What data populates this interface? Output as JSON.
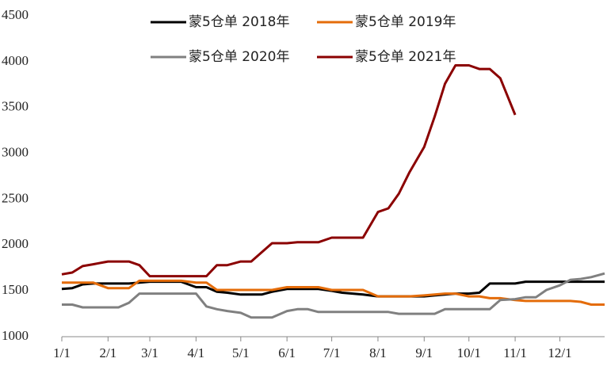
{
  "chart_data": {
    "type": "line",
    "x": [
      "1/1",
      "1/8",
      "1/15",
      "1/22",
      "2/1",
      "2/8",
      "2/15",
      "2/22",
      "3/1",
      "3/8",
      "3/15",
      "3/22",
      "4/1",
      "4/8",
      "4/15",
      "4/22",
      "5/1",
      "5/8",
      "5/15",
      "5/22",
      "6/1",
      "6/8",
      "6/15",
      "6/22",
      "7/1",
      "7/8",
      "7/15",
      "7/22",
      "8/1",
      "8/8",
      "8/15",
      "8/22",
      "9/1",
      "9/8",
      "9/15",
      "9/22",
      "10/1",
      "10/8",
      "10/15",
      "10/22",
      "11/1",
      "11/8",
      "11/15",
      "11/22",
      "12/1",
      "12/8",
      "12/15",
      "12/22",
      "12/31"
    ],
    "series": [
      {
        "name": "蒙5仓单 2018年",
        "color": "#000000",
        "values": [
          1520,
          1530,
          1570,
          1580,
          1580,
          1580,
          1580,
          1590,
          1600,
          1600,
          1600,
          1600,
          1540,
          1540,
          1490,
          1480,
          1460,
          1460,
          1460,
          1490,
          1520,
          1520,
          1520,
          1520,
          1500,
          1480,
          1470,
          1460,
          1440,
          1440,
          1440,
          1440,
          1440,
          1450,
          1460,
          1470,
          1470,
          1480,
          1580,
          1580,
          1580,
          1600,
          1600,
          1600,
          1600,
          1600,
          1600,
          1600,
          1600
        ]
      },
      {
        "name": "蒙5仓单 2019年",
        "color": "#e46c0a",
        "values": [
          1590,
          1590,
          1590,
          1590,
          1530,
          1530,
          1530,
          1610,
          1610,
          1610,
          1610,
          1610,
          1590,
          1590,
          1510,
          1510,
          1510,
          1510,
          1510,
          1510,
          1540,
          1540,
          1540,
          1540,
          1510,
          1510,
          1510,
          1510,
          1440,
          1440,
          1440,
          1440,
          1450,
          1460,
          1470,
          1470,
          1440,
          1440,
          1420,
          1420,
          1400,
          1390,
          1390,
          1390,
          1390,
          1390,
          1380,
          1350,
          1350
        ]
      },
      {
        "name": "蒙5仓单 2020年",
        "color": "#808080",
        "values": [
          1350,
          1350,
          1320,
          1320,
          1320,
          1320,
          1370,
          1470,
          1470,
          1470,
          1470,
          1470,
          1470,
          1330,
          1300,
          1280,
          1260,
          1210,
          1210,
          1210,
          1280,
          1300,
          1300,
          1270,
          1270,
          1270,
          1270,
          1270,
          1270,
          1270,
          1250,
          1250,
          1250,
          1250,
          1300,
          1300,
          1300,
          1300,
          1300,
          1400,
          1410,
          1430,
          1430,
          1510,
          1560,
          1620,
          1630,
          1650,
          1690
        ]
      },
      {
        "name": "蒙5仓单 2021年",
        "color": "#8b0000",
        "values": [
          1680,
          1700,
          1770,
          1790,
          1820,
          1820,
          1820,
          1780,
          1660,
          1660,
          1660,
          1660,
          1660,
          1660,
          1780,
          1780,
          1820,
          1820,
          1920,
          2020,
          2020,
          2030,
          2030,
          2030,
          2080,
          2080,
          2080,
          2080,
          2360,
          2400,
          2560,
          2790,
          3070,
          3400,
          3760,
          3960,
          3960,
          3920,
          3920,
          3820,
          3420,
          null,
          null,
          null,
          null,
          null,
          null,
          null,
          null
        ]
      }
    ],
    "xlim": [
      "1/1",
      "12/31"
    ],
    "xticks": [
      "1/1",
      "2/1",
      "3/1",
      "4/1",
      "5/1",
      "6/1",
      "7/1",
      "8/1",
      "9/1",
      "10/1",
      "11/1",
      "12/1"
    ],
    "ylim": [
      1000,
      4500
    ],
    "yticks": [
      1000,
      1500,
      2000,
      2500,
      3000,
      3500,
      4000,
      4500
    ]
  }
}
